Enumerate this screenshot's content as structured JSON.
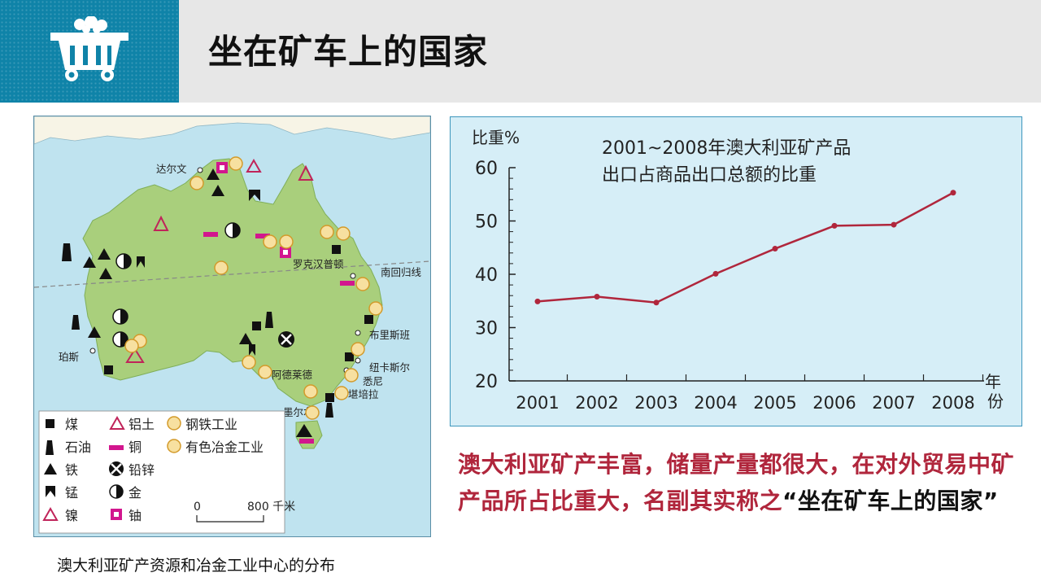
{
  "header": {
    "title": "坐在矿车上的国家"
  },
  "map": {
    "caption": "澳大利亚矿产资源和冶金工业中心的分布",
    "cities": {
      "darwin": "达尔文",
      "rockhampton": "罗克汉普顿",
      "tropic": "南回归线",
      "brisbane": "布里斯班",
      "perth": "珀斯",
      "newcastle": "纽卡斯尔",
      "sydney": "悉尼",
      "canberra": "堪培拉",
      "adelaide": "阿德莱德",
      "melbourne": "墨尔本"
    },
    "legend": [
      {
        "icon": "coal-icon",
        "label": "煤"
      },
      {
        "icon": "bauxite-icon",
        "label": "铝土"
      },
      {
        "icon": "steel-industry-icon",
        "label": "钢铁工业"
      },
      {
        "icon": "oil-icon",
        "label": "石油"
      },
      {
        "icon": "copper-icon",
        "label": "铜"
      },
      {
        "icon": "nonferrous-industry-icon",
        "label": "有色冶金工业"
      },
      {
        "icon": "iron-icon",
        "label": "铁"
      },
      {
        "icon": "lead-zinc-icon",
        "label": "铅锌"
      },
      {
        "icon": "manganese-icon",
        "label": "锰"
      },
      {
        "icon": "gold-icon",
        "label": "金"
      },
      {
        "icon": "nickel-icon",
        "label": "镍"
      },
      {
        "icon": "uranium-icon",
        "label": "铀"
      }
    ],
    "scale": {
      "zero": "0",
      "value": "800 千米"
    }
  },
  "chart_data": {
    "type": "line",
    "title_lines": [
      "2001~2008年澳大利亚矿产品",
      "出口占商品出口总额的比重"
    ],
    "ylabel": "比重%",
    "xlabel": "年份",
    "x": [
      "2001",
      "2002",
      "2003",
      "2004",
      "2005",
      "2006",
      "2007",
      "2008"
    ],
    "values": [
      34.9,
      35.8,
      34.7,
      40.1,
      44.8,
      49.1,
      49.3,
      55.3
    ],
    "yticks": [
      "60",
      "50",
      "40",
      "30",
      "20"
    ],
    "ylim": [
      20,
      60
    ],
    "line_color": "#b0263c"
  },
  "conclusion": {
    "text": "澳大利亚矿产丰富，储量产量都很大，在对外贸易中矿产品所占比重大，名副其实称之",
    "quote": "“坐在矿车上的国家”"
  }
}
